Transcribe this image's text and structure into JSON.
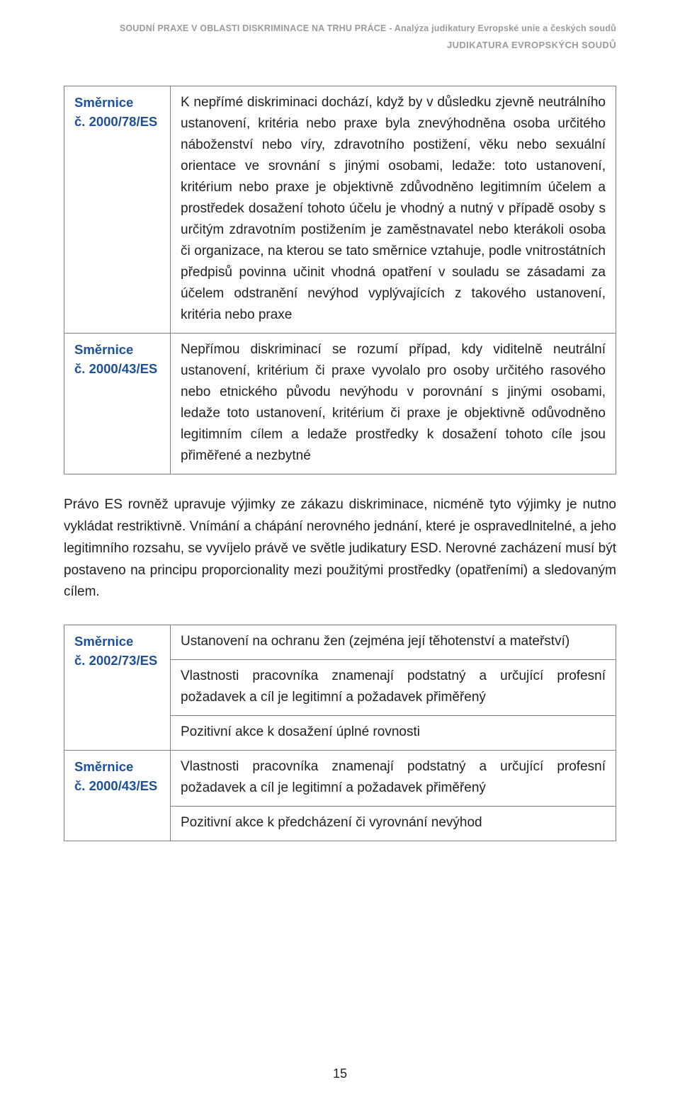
{
  "header": {
    "line1": "SOUDNÍ PRAXE V OBLASTI DISKRIMINACE NA TRHU PRÁCE - Analýza judikatury Evropské unie a českých soudů",
    "line2": "JUDIKATURA EVROPSKÝCH SOUDŮ"
  },
  "table1": {
    "rows": [
      {
        "label_line1": "Směrnice",
        "label_line2": "č. 2000/78/ES",
        "body": "K nepřímé diskriminaci dochází, když by v důsledku zjevně neutrálního ustanovení, kritéria nebo praxe byla znevýhodněna osoba určitého náboženství nebo víry, zdravotního postižení, věku nebo sexuální orientace ve srovnání s jinými osobami, ledaže: toto ustanovení, kritérium nebo praxe je objektivně zdůvodněno legitimním účelem a prostředek dosažení tohoto účelu je vhodný a nutný v případě osoby s určitým zdravotním postižením je zaměstnavatel nebo kterákoli osoba či organizace, na kterou se tato směrnice vztahuje, podle vnitrostátních předpisů povinna učinit vhodná opatření v souladu se zásadami za účelem odstranění nevýhod vyplývajících z takového ustanovení, kritéria nebo praxe"
      },
      {
        "label_line1": "Směrnice",
        "label_line2": "č. 2000/43/ES",
        "body": "Nepřímou diskriminací se rozumí případ, kdy viditelně neutrální ustanovení, kritérium či praxe vyvolalo pro osoby určitého rasového nebo etnického původu nevýhodu v porovnání s jinými osobami, ledaže toto ustanovení, kritérium či praxe je objektivně odůvodněno legitimním cílem a ledaže prostředky k dosažení tohoto cíle jsou přiměřené a nezbytné"
      }
    ]
  },
  "paragraph": "Právo ES rovněž upravuje výjimky ze zákazu diskriminace, nicméně tyto výjimky je nutno vykládat restriktivně. Vnímání a chápání nerovného jednání, které je ospravedlnitelné, a jeho legitimního rozsahu, se vyvíjelo právě ve světle judikatury ESD. Nerovné zacházení musí být postaveno na principu proporcionality mezi použitými prostředky (opatřeními) a sledovaným cílem.",
  "table2": {
    "group1": {
      "label_line1": "Směrnice",
      "label_line2": "č. 2002/73/ES",
      "rows": [
        "Ustanovení na ochranu žen (zejména její těhotenství a mateřství)",
        "Vlastnosti pracovníka znamenají podstatný a určující profesní požadavek a cíl je legitimní a požadavek přiměřený",
        "Pozitivní akce k dosažení úplné rovnosti"
      ]
    },
    "group2": {
      "label_line1": "Směrnice",
      "label_line2": "č. 2000/43/ES",
      "rows": [
        "Vlastnosti pracovníka znamenají podstatný a určující profesní požadavek a cíl je legitimní a požadavek přiměřený",
        "Pozitivní akce k předcházení či vyrovnání nevýhod"
      ]
    }
  },
  "page_number": "15",
  "colors": {
    "label_blue": "#1c4f9c",
    "header_gray": "#9b9b9b",
    "border_gray": "#808080",
    "text": "#231f20",
    "background": "#ffffff"
  }
}
